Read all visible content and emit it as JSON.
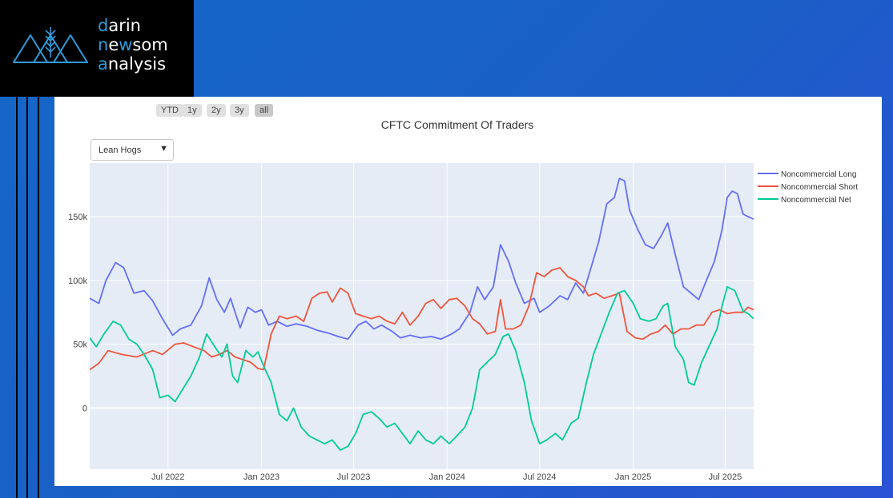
{
  "logo": {
    "line1_first": "d",
    "line1_rest": "arin",
    "line2_first": "n",
    "line2_mid": "e",
    "line2_hl": "w",
    "line2_rest": "som",
    "line3_first": "a",
    "line3_rest": "nalysis"
  },
  "range_buttons": [
    "YTD",
    "1y",
    "2y",
    "3y",
    "all"
  ],
  "active_range": "all",
  "dropdown": {
    "selected": "Lean Hogs"
  },
  "colors": {
    "long": "#636efa",
    "short": "#ef553b",
    "net": "#00cc96",
    "plot_bg": "#e5ecf6",
    "accent": "#2d9cdb"
  },
  "chart_data": {
    "type": "line",
    "title": "CFTC Commitment Of Traders",
    "xlabel": "",
    "ylabel": "",
    "x_range": [
      "2022-01-28",
      "2025-08-26"
    ],
    "ylim": [
      -48000,
      192000
    ],
    "y_ticks": [
      {
        "v": 0,
        "label": "0"
      },
      {
        "v": 50000,
        "label": "50k"
      },
      {
        "v": 100000,
        "label": "100k"
      },
      {
        "v": 150000,
        "label": "150k"
      }
    ],
    "x_ticks": [
      {
        "date": "2022-07-01",
        "label": "Jul 2022"
      },
      {
        "date": "2023-01-01",
        "label": "Jan 2023"
      },
      {
        "date": "2023-07-01",
        "label": "Jul 2023"
      },
      {
        "date": "2024-01-01",
        "label": "Jan 2024"
      },
      {
        "date": "2024-07-01",
        "label": "Jul 2024"
      },
      {
        "date": "2025-01-01",
        "label": "Jan 2025"
      },
      {
        "date": "2025-07-01",
        "label": "Jul 2025"
      }
    ],
    "grid": true,
    "legend_position": "right",
    "series": [
      {
        "name": "Noncommercial Long",
        "color": "#636efa",
        "points": [
          [
            "2022-01-28",
            86000
          ],
          [
            "2022-02-15",
            82000
          ],
          [
            "2022-03-01",
            100000
          ],
          [
            "2022-03-20",
            114000
          ],
          [
            "2022-04-05",
            110000
          ],
          [
            "2022-04-25",
            90000
          ],
          [
            "2022-05-15",
            92000
          ],
          [
            "2022-06-01",
            84000
          ],
          [
            "2022-06-20",
            70000
          ],
          [
            "2022-07-10",
            57000
          ],
          [
            "2022-07-25",
            62000
          ],
          [
            "2022-08-15",
            65000
          ],
          [
            "2022-09-05",
            80000
          ],
          [
            "2022-09-20",
            102000
          ],
          [
            "2022-10-05",
            85000
          ],
          [
            "2022-10-20",
            75000
          ],
          [
            "2022-11-01",
            86000
          ],
          [
            "2022-11-20",
            63000
          ],
          [
            "2022-12-05",
            79000
          ],
          [
            "2022-12-20",
            75000
          ],
          [
            "2023-01-01",
            77000
          ],
          [
            "2023-01-15",
            65000
          ],
          [
            "2023-02-01",
            68000
          ],
          [
            "2023-02-20",
            64000
          ],
          [
            "2023-03-10",
            66000
          ],
          [
            "2023-04-01",
            64000
          ],
          [
            "2023-04-20",
            61000
          ],
          [
            "2023-05-10",
            59000
          ],
          [
            "2023-06-01",
            56000
          ],
          [
            "2023-06-20",
            54000
          ],
          [
            "2023-07-10",
            65000
          ],
          [
            "2023-07-25",
            68000
          ],
          [
            "2023-08-10",
            62000
          ],
          [
            "2023-08-25",
            65000
          ],
          [
            "2023-09-15",
            60000
          ],
          [
            "2023-10-01",
            55000
          ],
          [
            "2023-10-20",
            57000
          ],
          [
            "2023-11-10",
            55000
          ],
          [
            "2023-12-01",
            56000
          ],
          [
            "2023-12-20",
            54000
          ],
          [
            "2024-01-10",
            58000
          ],
          [
            "2024-01-25",
            62000
          ],
          [
            "2024-02-15",
            75000
          ],
          [
            "2024-03-01",
            95000
          ],
          [
            "2024-03-15",
            85000
          ],
          [
            "2024-04-01",
            95000
          ],
          [
            "2024-04-15",
            128000
          ],
          [
            "2024-05-01",
            115000
          ],
          [
            "2024-05-15",
            98000
          ],
          [
            "2024-06-01",
            82000
          ],
          [
            "2024-06-20",
            86000
          ],
          [
            "2024-07-01",
            75000
          ],
          [
            "2024-07-20",
            80000
          ],
          [
            "2024-08-10",
            88000
          ],
          [
            "2024-08-25",
            85000
          ],
          [
            "2024-09-10",
            98000
          ],
          [
            "2024-09-25",
            90000
          ],
          [
            "2024-10-10",
            110000
          ],
          [
            "2024-10-25",
            130000
          ],
          [
            "2024-11-10",
            160000
          ],
          [
            "2024-11-25",
            165000
          ],
          [
            "2024-12-05",
            180000
          ],
          [
            "2024-12-15",
            178000
          ],
          [
            "2024-12-25",
            155000
          ],
          [
            "2025-01-10",
            140000
          ],
          [
            "2025-01-25",
            128000
          ],
          [
            "2025-02-10",
            125000
          ],
          [
            "2025-02-25",
            135000
          ],
          [
            "2025-03-10",
            145000
          ],
          [
            "2025-03-25",
            120000
          ],
          [
            "2025-04-10",
            95000
          ],
          [
            "2025-04-25",
            90000
          ],
          [
            "2025-05-10",
            85000
          ],
          [
            "2025-05-25",
            100000
          ],
          [
            "2025-06-10",
            115000
          ],
          [
            "2025-06-25",
            140000
          ],
          [
            "2025-07-05",
            165000
          ],
          [
            "2025-07-15",
            170000
          ],
          [
            "2025-07-25",
            168000
          ],
          [
            "2025-08-05",
            152000
          ],
          [
            "2025-08-15",
            150000
          ],
          [
            "2025-08-26",
            148000
          ]
        ]
      },
      {
        "name": "Noncommercial Short",
        "color": "#ef553b",
        "points": [
          [
            "2022-01-28",
            30000
          ],
          [
            "2022-02-15",
            35000
          ],
          [
            "2022-03-05",
            45000
          ],
          [
            "2022-04-01",
            42000
          ],
          [
            "2022-05-01",
            40000
          ],
          [
            "2022-06-01",
            45000
          ],
          [
            "2022-06-20",
            42000
          ],
          [
            "2022-07-15",
            50000
          ],
          [
            "2022-08-01",
            51000
          ],
          [
            "2022-08-20",
            48000
          ],
          [
            "2022-09-10",
            45000
          ],
          [
            "2022-09-25",
            40000
          ],
          [
            "2022-10-10",
            42000
          ],
          [
            "2022-10-25",
            45000
          ],
          [
            "2022-11-10",
            40000
          ],
          [
            "2022-11-25",
            38000
          ],
          [
            "2022-12-10",
            36000
          ],
          [
            "2022-12-25",
            31000
          ],
          [
            "2023-01-05",
            30000
          ],
          [
            "2023-01-20",
            58000
          ],
          [
            "2023-02-05",
            72000
          ],
          [
            "2023-02-20",
            70000
          ],
          [
            "2023-03-10",
            72000
          ],
          [
            "2023-03-25",
            68000
          ],
          [
            "2023-04-10",
            86000
          ],
          [
            "2023-04-25",
            90000
          ],
          [
            "2023-05-10",
            91000
          ],
          [
            "2023-05-20",
            83000
          ],
          [
            "2023-06-05",
            94000
          ],
          [
            "2023-06-20",
            90000
          ],
          [
            "2023-07-05",
            74000
          ],
          [
            "2023-07-20",
            72000
          ],
          [
            "2023-08-05",
            70000
          ],
          [
            "2023-08-20",
            72000
          ],
          [
            "2023-09-05",
            68000
          ],
          [
            "2023-09-20",
            66000
          ],
          [
            "2023-10-05",
            75000
          ],
          [
            "2023-10-20",
            65000
          ],
          [
            "2023-11-05",
            72000
          ],
          [
            "2023-11-20",
            82000
          ],
          [
            "2023-12-05",
            85000
          ],
          [
            "2023-12-20",
            78000
          ],
          [
            "2024-01-05",
            85000
          ],
          [
            "2024-01-20",
            86000
          ],
          [
            "2024-02-05",
            80000
          ],
          [
            "2024-02-20",
            70000
          ],
          [
            "2024-03-05",
            66000
          ],
          [
            "2024-03-20",
            58000
          ],
          [
            "2024-04-05",
            60000
          ],
          [
            "2024-04-15",
            85000
          ],
          [
            "2024-04-25",
            62000
          ],
          [
            "2024-05-10",
            62000
          ],
          [
            "2024-05-25",
            65000
          ],
          [
            "2024-06-10",
            80000
          ],
          [
            "2024-06-25",
            106000
          ],
          [
            "2024-07-10",
            103000
          ],
          [
            "2024-07-25",
            108000
          ],
          [
            "2024-08-10",
            110000
          ],
          [
            "2024-08-25",
            103000
          ],
          [
            "2024-09-10",
            100000
          ],
          [
            "2024-09-25",
            95000
          ],
          [
            "2024-10-05",
            88000
          ],
          [
            "2024-10-20",
            90000
          ],
          [
            "2024-11-05",
            86000
          ],
          [
            "2024-11-20",
            88000
          ],
          [
            "2024-12-05",
            90000
          ],
          [
            "2024-12-20",
            60000
          ],
          [
            "2025-01-05",
            55000
          ],
          [
            "2025-01-20",
            54000
          ],
          [
            "2025-02-05",
            58000
          ],
          [
            "2025-02-20",
            60000
          ],
          [
            "2025-03-05",
            65000
          ],
          [
            "2025-03-20",
            58000
          ],
          [
            "2025-04-05",
            62000
          ],
          [
            "2025-04-20",
            62000
          ],
          [
            "2025-05-05",
            65000
          ],
          [
            "2025-05-20",
            65000
          ],
          [
            "2025-06-05",
            75000
          ],
          [
            "2025-06-20",
            77000
          ],
          [
            "2025-07-05",
            74000
          ],
          [
            "2025-07-20",
            75000
          ],
          [
            "2025-08-05",
            75000
          ],
          [
            "2025-08-15",
            79000
          ],
          [
            "2025-08-26",
            77000
          ]
        ]
      },
      {
        "name": "Noncommercial Net",
        "color": "#00cc96",
        "points": [
          [
            "2022-01-28",
            55000
          ],
          [
            "2022-02-10",
            48000
          ],
          [
            "2022-02-25",
            58000
          ],
          [
            "2022-03-15",
            68000
          ],
          [
            "2022-03-30",
            65000
          ],
          [
            "2022-04-15",
            54000
          ],
          [
            "2022-05-01",
            50000
          ],
          [
            "2022-05-15",
            42000
          ],
          [
            "2022-06-01",
            30000
          ],
          [
            "2022-06-15",
            8000
          ],
          [
            "2022-07-01",
            10000
          ],
          [
            "2022-07-15",
            5000
          ],
          [
            "2022-08-01",
            16000
          ],
          [
            "2022-08-15",
            25000
          ],
          [
            "2022-09-01",
            40000
          ],
          [
            "2022-09-15",
            58000
          ],
          [
            "2022-10-01",
            48000
          ],
          [
            "2022-10-15",
            40000
          ],
          [
            "2022-10-25",
            50000
          ],
          [
            "2022-11-05",
            25000
          ],
          [
            "2022-11-15",
            20000
          ],
          [
            "2022-12-01",
            45000
          ],
          [
            "2022-12-15",
            40000
          ],
          [
            "2022-12-25",
            44000
          ],
          [
            "2023-01-05",
            33000
          ],
          [
            "2023-01-20",
            20000
          ],
          [
            "2023-02-05",
            -5000
          ],
          [
            "2023-02-20",
            -10000
          ],
          [
            "2023-03-05",
            0
          ],
          [
            "2023-03-20",
            -15000
          ],
          [
            "2023-04-05",
            -22000
          ],
          [
            "2023-04-20",
            -25000
          ],
          [
            "2023-05-05",
            -28000
          ],
          [
            "2023-05-20",
            -25000
          ],
          [
            "2023-06-05",
            -33000
          ],
          [
            "2023-06-20",
            -30000
          ],
          [
            "2023-07-05",
            -20000
          ],
          [
            "2023-07-20",
            -5000
          ],
          [
            "2023-08-05",
            -3000
          ],
          [
            "2023-08-20",
            -8000
          ],
          [
            "2023-09-05",
            -15000
          ],
          [
            "2023-09-20",
            -12000
          ],
          [
            "2023-10-05",
            -20000
          ],
          [
            "2023-10-20",
            -28000
          ],
          [
            "2023-11-05",
            -18000
          ],
          [
            "2023-11-20",
            -25000
          ],
          [
            "2023-12-05",
            -28000
          ],
          [
            "2023-12-20",
            -22000
          ],
          [
            "2024-01-05",
            -28000
          ],
          [
            "2024-01-20",
            -22000
          ],
          [
            "2024-02-05",
            -15000
          ],
          [
            "2024-02-20",
            0
          ],
          [
            "2024-03-05",
            30000
          ],
          [
            "2024-03-20",
            36000
          ],
          [
            "2024-04-05",
            42000
          ],
          [
            "2024-04-20",
            56000
          ],
          [
            "2024-05-01",
            58000
          ],
          [
            "2024-05-15",
            45000
          ],
          [
            "2024-06-01",
            20000
          ],
          [
            "2024-06-15",
            -10000
          ],
          [
            "2024-07-01",
            -28000
          ],
          [
            "2024-07-15",
            -25000
          ],
          [
            "2024-08-01",
            -20000
          ],
          [
            "2024-08-15",
            -25000
          ],
          [
            "2024-09-01",
            -12000
          ],
          [
            "2024-09-15",
            -8000
          ],
          [
            "2024-10-01",
            20000
          ],
          [
            "2024-10-15",
            42000
          ],
          [
            "2024-11-01",
            60000
          ],
          [
            "2024-11-15",
            75000
          ],
          [
            "2024-12-01",
            90000
          ],
          [
            "2024-12-15",
            92000
          ],
          [
            "2025-01-01",
            82000
          ],
          [
            "2025-01-15",
            70000
          ],
          [
            "2025-02-01",
            68000
          ],
          [
            "2025-02-15",
            70000
          ],
          [
            "2025-03-01",
            80000
          ],
          [
            "2025-03-10",
            82000
          ],
          [
            "2025-03-25",
            48000
          ],
          [
            "2025-04-10",
            38000
          ],
          [
            "2025-04-20",
            20000
          ],
          [
            "2025-05-01",
            18000
          ],
          [
            "2025-05-15",
            35000
          ],
          [
            "2025-06-01",
            50000
          ],
          [
            "2025-06-15",
            62000
          ],
          [
            "2025-06-25",
            80000
          ],
          [
            "2025-07-05",
            95000
          ],
          [
            "2025-07-20",
            92000
          ],
          [
            "2025-08-05",
            76000
          ],
          [
            "2025-08-15",
            74000
          ],
          [
            "2025-08-26",
            70000
          ]
        ]
      }
    ]
  }
}
